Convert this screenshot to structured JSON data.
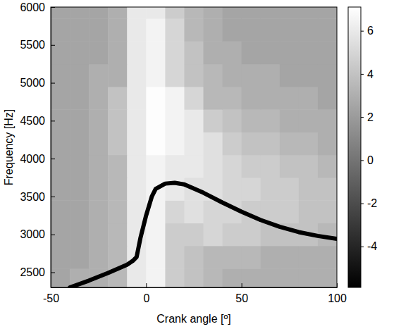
{
  "chart_data": {
    "type": "heatmap",
    "x_label": "Crank angle [º]",
    "y_label": "Frequency [Hz]",
    "xlim": [
      -50,
      100
    ],
    "xticks": [
      -50,
      0,
      50,
      100
    ],
    "ylim": [
      2300,
      6000
    ],
    "yticks": [
      2500,
      3000,
      3500,
      4000,
      4500,
      5000,
      5500,
      6000
    ],
    "heatmap": {
      "x": [
        -45,
        -35,
        -25,
        -15,
        -5,
        5,
        15,
        25,
        35,
        45,
        55,
        65,
        75,
        85,
        95
      ],
      "y": [
        2400,
        2700,
        3000,
        3300,
        3600,
        3900,
        4200,
        4500,
        4800,
        5100,
        5400,
        5700,
        6000
      ],
      "values": [
        [
          2.5,
          3,
          3,
          3.5,
          6,
          6.5,
          4.5,
          4,
          3.5,
          3,
          3,
          3,
          3,
          3,
          3
        ],
        [
          2.5,
          2.5,
          3,
          3.5,
          6,
          6.5,
          4.5,
          4,
          3.5,
          3.5,
          3.5,
          3,
          3,
          3,
          3
        ],
        [
          2.5,
          2.5,
          3,
          3.5,
          6,
          6.5,
          4.5,
          4.5,
          5,
          4.5,
          4.5,
          4,
          4,
          4,
          3.5
        ],
        [
          2.5,
          2.5,
          3,
          3.5,
          6,
          6.5,
          5,
          5.5,
          5,
          5,
          4.5,
          4.5,
          4.5,
          4,
          4
        ],
        [
          2.5,
          2.5,
          3,
          3.5,
          6,
          6.5,
          6,
          5.5,
          5.5,
          5,
          5,
          4.5,
          4.5,
          4,
          4
        ],
        [
          2.5,
          2.5,
          3,
          3.5,
          6,
          6.5,
          6,
          6,
          5.5,
          5,
          4.5,
          4.5,
          4,
          4,
          3.5
        ],
        [
          2.5,
          2.5,
          3,
          4,
          6,
          7,
          6.5,
          6,
          5.5,
          4.5,
          4,
          4,
          3.5,
          3.5,
          3
        ],
        [
          2.5,
          2.5,
          3,
          4,
          6,
          7,
          6.5,
          6,
          4.5,
          4,
          3.5,
          3.5,
          3,
          3,
          3
        ],
        [
          2.5,
          2.5,
          3,
          4,
          6,
          7,
          6.5,
          5,
          3.5,
          3.5,
          3,
          3,
          3,
          3,
          2.5
        ],
        [
          2.5,
          2.5,
          3,
          3,
          6,
          6.5,
          5,
          4,
          3.5,
          3,
          3,
          3,
          2.5,
          2.5,
          2.5
        ],
        [
          2.5,
          2.5,
          2.5,
          3,
          6,
          6.5,
          5,
          4,
          3,
          3,
          2.5,
          2.5,
          2.5,
          2.5,
          2.5
        ],
        [
          2.5,
          2.5,
          2.5,
          3,
          6,
          6.5,
          5,
          3.5,
          3,
          2.5,
          2.5,
          2.5,
          2.5,
          2.5,
          2.5
        ],
        [
          2.5,
          2.5,
          2.5,
          3,
          6,
          6,
          4.5,
          3.5,
          3,
          2.5,
          2.5,
          2.5,
          2.5,
          2.5,
          2.5
        ]
      ],
      "colorbar_lim": [
        -5.9,
        7.1
      ],
      "colorbar_ticks": [
        -4,
        -2,
        0,
        2,
        4,
        6
      ]
    },
    "series": [
      {
        "type": "line",
        "color": "#000000",
        "x": [
          -40,
          -30,
          -20,
          -10,
          -7,
          -5,
          -3,
          0,
          3,
          5,
          10,
          15,
          20,
          30,
          40,
          50,
          60,
          70,
          80,
          90,
          100
        ],
        "values": [
          2300,
          2390,
          2490,
          2600,
          2650,
          2700,
          2950,
          3250,
          3500,
          3600,
          3670,
          3680,
          3660,
          3550,
          3420,
          3300,
          3190,
          3100,
          3030,
          2980,
          2940
        ]
      }
    ]
  }
}
